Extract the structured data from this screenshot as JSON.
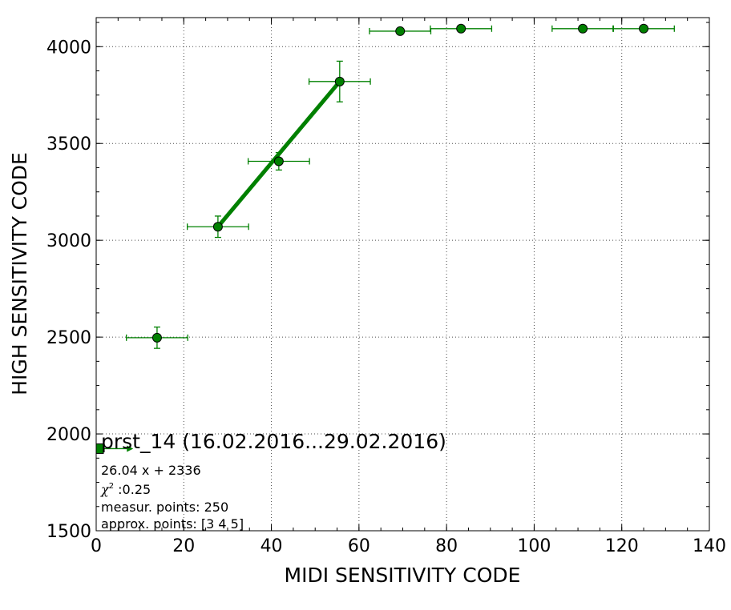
{
  "chart_data": {
    "type": "scatter",
    "title": "prst_14 (16.02.2016...29.02.2016)",
    "xlabel": "MIDI SENSITIVITY CODE",
    "ylabel": "HIGH SENSITIVITY CODE",
    "xlim": [
      0,
      140
    ],
    "ylim": [
      1500,
      4150
    ],
    "xticks": [
      0,
      20,
      40,
      60,
      80,
      100,
      120,
      140
    ],
    "yticks": [
      1500,
      2000,
      2500,
      3000,
      3500,
      4000
    ],
    "x_minor_step": 5,
    "y_minor_step": 125,
    "grid": true,
    "colors": {
      "series": "#008000",
      "marker_edge": "#000000"
    },
    "series": [
      {
        "x": [
          0,
          13.9,
          27.8,
          41.7,
          55.6,
          69.4,
          83.3,
          111.1,
          125
        ],
        "y": [
          1924,
          2497,
          3070,
          3408,
          3820,
          4080,
          4093,
          4093,
          4093
        ],
        "xerr": [
          0,
          7,
          7,
          7,
          7,
          7,
          7,
          7,
          7
        ],
        "yerr": [
          0,
          55,
          55,
          45,
          105,
          0,
          0,
          0,
          0
        ]
      }
    ],
    "fit": {
      "slope": 26.04,
      "intercept": 2336,
      "x_range": [
        27.8,
        55.6
      ]
    },
    "annotations": {
      "equation": "26.04 x + 2336",
      "chi_symbol": "χ",
      "chi_power": "2",
      "chi_value": " :0.25",
      "measur_points": "measur. points: 250",
      "approx_points": "approx. points: [3 4 5]"
    }
  }
}
